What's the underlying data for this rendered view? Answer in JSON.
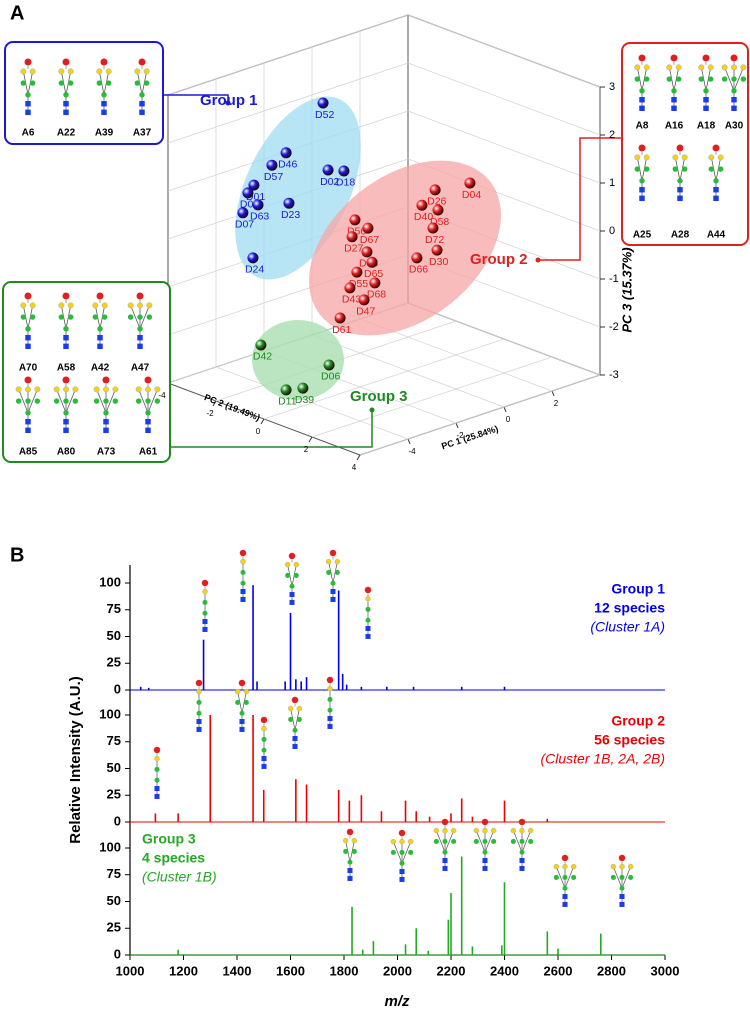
{
  "panel_labels": [
    "A",
    "B"
  ],
  "chart_data": [
    {
      "type": "scatter3d",
      "x_label": "PC 1 (25.84%)",
      "y_label": "PC 2 (19.49%)",
      "z_label": "PC 3 (15.37%)",
      "xlim": [
        -6,
        4
      ],
      "ylim": [
        -4,
        4
      ],
      "zlim": [
        -3,
        3
      ],
      "xticks": [
        -4,
        -2,
        0,
        2
      ],
      "yticks": [
        -4,
        -2,
        0,
        2,
        4
      ],
      "zticks": [
        -3,
        -2,
        -1,
        0,
        1,
        2,
        3
      ],
      "series": [
        {
          "name": "Group 1",
          "color": "#1a1ad6",
          "structures": [
            "A6",
            "A22",
            "A39",
            "A37"
          ],
          "points": [
            {
              "label": "D52",
              "x": -0.54,
              "y": -3,
              "z": 2.11
            },
            {
              "label": "D46",
              "x": -2.08,
              "y": -3,
              "z": 1.33
            },
            {
              "label": "D57",
              "x": -2.67,
              "y": -3,
              "z": 1.17
            },
            {
              "label": "D02",
              "x": -0.33,
              "y": -3,
              "z": 0.68
            },
            {
              "label": "D18",
              "x": 0.33,
              "y": -3,
              "z": 0.55
            },
            {
              "label": "D01",
              "x": -3.42,
              "y": -3,
              "z": 0.88
            },
            {
              "label": "D05",
              "x": -3.67,
              "y": -3,
              "z": 0.76
            },
            {
              "label": "D23",
              "x": -1.96,
              "y": -3,
              "z": 0.26
            },
            {
              "label": "D63",
              "x": -3.25,
              "y": -3,
              "z": 0.44
            },
            {
              "label": "D07",
              "x": -3.88,
              "y": -3,
              "z": 0.38
            },
            {
              "label": "D24",
              "x": -3.46,
              "y": -3,
              "z": -0.63
            }
          ]
        },
        {
          "name": "Group 2",
          "color": "#e02020",
          "structures": [
            "A8",
            "A16",
            "A18",
            "A30",
            "A25",
            "A28",
            "A44"
          ],
          "points": [
            {
              "label": "D04",
              "x": 1.58,
              "y": 1,
              "z": 0.84
            },
            {
              "label": "D26",
              "x": 0.13,
              "y": 1,
              "z": 0.94
            },
            {
              "label": "D40",
              "x": -0.42,
              "y": 1,
              "z": 0.71
            },
            {
              "label": "D58",
              "x": 0.25,
              "y": 1,
              "z": 0.5
            },
            {
              "label": "D72",
              "x": 0.04,
              "y": 1,
              "z": 0.16
            },
            {
              "label": "D56",
              "x": -3.21,
              "y": 1,
              "z": 0.87
            },
            {
              "label": "D67",
              "x": -2.67,
              "y": 1,
              "z": 0.61
            },
            {
              "label": "D27",
              "x": -3.33,
              "y": 1,
              "z": 0.54
            },
            {
              "label": "D38",
              "x": -2.71,
              "y": 1,
              "z": 0.12
            },
            {
              "label": "D30",
              "x": 0.21,
              "y": 1,
              "z": -0.33
            },
            {
              "label": "D66",
              "x": -0.63,
              "y": 1,
              "z": -0.35
            },
            {
              "label": "D65",
              "x": -2.5,
              "y": 1,
              "z": -0.13
            },
            {
              "label": "D55",
              "x": -3.13,
              "y": 1,
              "z": -0.23
            },
            {
              "label": "D68",
              "x": -2.38,
              "y": 1,
              "z": -0.58
            },
            {
              "label": "D43",
              "x": -3.42,
              "y": 1,
              "z": -0.51
            },
            {
              "label": "D47",
              "x": -2.83,
              "y": 1,
              "z": -0.86
            },
            {
              "label": "D61",
              "x": -3.83,
              "y": 1,
              "z": -1.07
            }
          ]
        },
        {
          "name": "Group 3",
          "color": "#1f8a1f",
          "structures": [
            "A70",
            "A58",
            "A42",
            "A47",
            "A85",
            "A80",
            "A73",
            "A61"
          ],
          "points": [
            {
              "label": "D42",
              "x": -5.13,
              "y": -1,
              "z": -1.79
            },
            {
              "label": "D06",
              "x": -2.29,
              "y": -1,
              "z": -2.68
            },
            {
              "label": "D11",
              "x": -4.08,
              "y": -1,
              "z": -2.9
            },
            {
              "label": "D39",
              "x": -3.38,
              "y": -1,
              "z": -2.98
            }
          ]
        }
      ]
    },
    {
      "type": "spectrum",
      "x_label": "m/z",
      "y_label": "Relative Intensity (A.U.)",
      "xlim": [
        1000,
        3000
      ],
      "xticks": [
        1000,
        1200,
        1400,
        1600,
        1800,
        2000,
        2200,
        2400,
        2600,
        2800,
        3000
      ],
      "ylim": [
        0,
        100
      ],
      "yticks": [
        0,
        25,
        50,
        75,
        100
      ],
      "series": [
        {
          "name": "Group 1",
          "notes": [
            "12 species",
            "(Cluster 1A)"
          ],
          "color": "#0000ee",
          "x": [
            1040,
            1070,
            1275,
            1460,
            1475,
            1580,
            1600,
            1620,
            1640,
            1660,
            1780,
            1795,
            1810,
            1865,
            1960,
            2060,
            2240,
            2400
          ],
          "values": [
            3,
            2,
            47,
            98,
            8,
            8,
            72,
            10,
            8,
            12,
            93,
            15,
            5,
            3,
            3,
            3,
            3,
            3
          ]
        },
        {
          "name": "Group 2",
          "notes": [
            "56 species",
            "(Cluster 1B, 2A, 2B)"
          ],
          "color": "#ee0000",
          "x": [
            1095,
            1180,
            1300,
            1460,
            1500,
            1620,
            1660,
            1780,
            1820,
            1865,
            1940,
            2030,
            2070,
            2120,
            2200,
            2240,
            2280,
            2400,
            2560
          ],
          "values": [
            8,
            8,
            100,
            100,
            30,
            40,
            35,
            30,
            20,
            25,
            10,
            20,
            10,
            5,
            8,
            22,
            5,
            20,
            3
          ]
        },
        {
          "name": "Group 3",
          "notes": [
            "4 species",
            "(Cluster 1B)"
          ],
          "color": "#22aa22",
          "x": [
            1180,
            1830,
            1870,
            1910,
            2030,
            2070,
            2115,
            2190,
            2200,
            2240,
            2280,
            2390,
            2400,
            2560,
            2600,
            2760
          ],
          "values": [
            5,
            45,
            5,
            13,
            10,
            25,
            4,
            33,
            58,
            92,
            8,
            9,
            68,
            22,
            6,
            20
          ]
        }
      ]
    }
  ]
}
